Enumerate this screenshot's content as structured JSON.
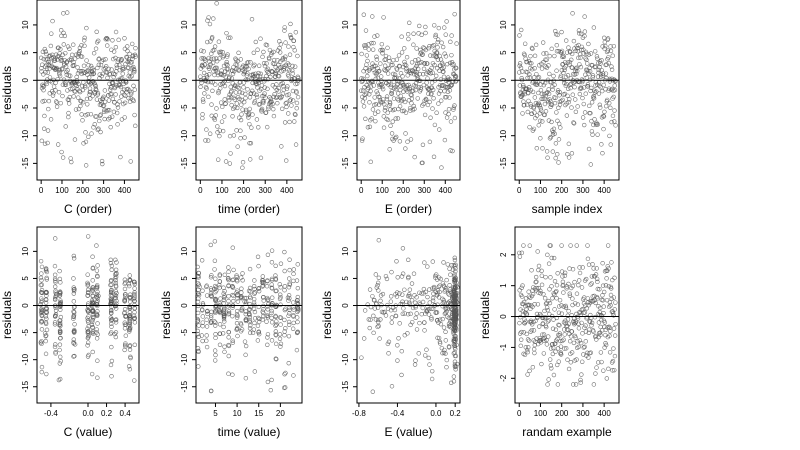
{
  "chart_data": [
    {
      "type": "scatter",
      "xlabel": "C (order)",
      "ylabel": "residuals",
      "xlim": [
        -20,
        470
      ],
      "ylim": [
        -18,
        14.5
      ],
      "xticks": [
        0,
        100,
        200,
        300,
        400
      ],
      "xtick_labels": [
        "0",
        "100",
        "200",
        "300",
        "400"
      ],
      "yticks": [
        10,
        5,
        0,
        -5,
        -10,
        -15
      ],
      "ytick_labels": [
        "10",
        "5",
        "0",
        "-5",
        "-10",
        "-15"
      ],
      "hline": 0,
      "pattern": "order"
    },
    {
      "type": "scatter",
      "xlabel": "time (order)",
      "ylabel": "residuals",
      "xlim": [
        -20,
        470
      ],
      "ylim": [
        -18,
        14.5
      ],
      "xticks": [
        0,
        100,
        200,
        300,
        400
      ],
      "xtick_labels": [
        "0",
        "100",
        "200",
        "300",
        "400"
      ],
      "yticks": [
        10,
        5,
        0,
        -5,
        -10,
        -15
      ],
      "ytick_labels": [
        "10",
        "5",
        "0",
        "-5",
        "-10",
        "-15"
      ],
      "hline": 0,
      "pattern": "order"
    },
    {
      "type": "scatter",
      "xlabel": "E (order)",
      "ylabel": "residuals",
      "xlim": [
        -20,
        470
      ],
      "ylim": [
        -18,
        14.5
      ],
      "xticks": [
        0,
        100,
        200,
        300,
        400
      ],
      "xtick_labels": [
        "0",
        "100",
        "200",
        "300",
        "400"
      ],
      "yticks": [
        10,
        5,
        0,
        -5,
        -10,
        -15
      ],
      "ytick_labels": [
        "10",
        "5",
        "0",
        "-5",
        "-10",
        "-15"
      ],
      "hline": 0,
      "pattern": "order"
    },
    {
      "type": "scatter",
      "xlabel": "sample index",
      "ylabel": "residuals",
      "xlim": [
        -20,
        470
      ],
      "ylim": [
        -18,
        14.5
      ],
      "xticks": [
        0,
        100,
        200,
        300,
        400
      ],
      "xtick_labels": [
        "0",
        "100",
        "200",
        "300",
        "400"
      ],
      "yticks": [
        10,
        5,
        0,
        -5,
        -10,
        -15
      ],
      "ytick_labels": [
        "10",
        "5",
        "0",
        "-5",
        "-10",
        "-15"
      ],
      "hline": 0,
      "pattern": "order"
    },
    {
      "type": "scatter",
      "xlabel": "C (value)",
      "ylabel": "residuals",
      "xlim": [
        -0.55,
        0.55
      ],
      "ylim": [
        -18,
        14.5
      ],
      "xticks": [
        -0.4,
        0.0,
        0.2,
        0.4
      ],
      "xtick_labels": [
        "-0.4",
        "0.0",
        "0.2",
        "0.4"
      ],
      "yticks": [
        10,
        5,
        0,
        -5,
        -10,
        -15
      ],
      "ytick_labels": [
        "10",
        "5",
        "0",
        "-5",
        "-10",
        "-15"
      ],
      "hline": 0,
      "pattern": "columns",
      "x_columns": [
        -0.5,
        -0.45,
        -0.35,
        -0.3,
        -0.15,
        0.0,
        0.05,
        0.1,
        0.25,
        0.3,
        0.4,
        0.45,
        0.5
      ]
    },
    {
      "type": "scatter",
      "xlabel": "time (value)",
      "ylabel": "residuals",
      "xlim": [
        0.5,
        25
      ],
      "ylim": [
        -18,
        14.5
      ],
      "xticks": [
        5,
        10,
        15,
        20
      ],
      "xtick_labels": [
        "5",
        "10",
        "15",
        "20"
      ],
      "yticks": [
        10,
        5,
        0,
        -5,
        -10,
        -15
      ],
      "ytick_labels": [
        "10",
        "5",
        "0",
        "-5",
        "-10",
        "-15"
      ],
      "hline": 0,
      "pattern": "columns",
      "x_columns": [
        1,
        2,
        3,
        4,
        5,
        6,
        7,
        8,
        9,
        10,
        11,
        12,
        13,
        14,
        15,
        16,
        17,
        18,
        19,
        20,
        21,
        22,
        23,
        24
      ]
    },
    {
      "type": "scatter",
      "xlabel": "E (value)",
      "ylabel": "residuals",
      "xlim": [
        -0.82,
        0.25
      ],
      "ylim": [
        -18,
        14.5
      ],
      "xticks": [
        -0.8,
        -0.4,
        0.0,
        0.2
      ],
      "xtick_labels": [
        "-0.8",
        "-0.4",
        "0.0",
        "0.2"
      ],
      "yticks": [
        10,
        5,
        0,
        -5,
        -10,
        -15
      ],
      "ytick_labels": [
        "10",
        "5",
        "0",
        "-5",
        "-10",
        "-15"
      ],
      "hline": 0,
      "pattern": "skewed"
    },
    {
      "type": "scatter",
      "xlabel": "randam example",
      "ylabel": "residuals",
      "xlim": [
        -20,
        470
      ],
      "ylim": [
        -2.8,
        2.9
      ],
      "xticks": [
        0,
        100,
        200,
        300,
        400
      ],
      "xtick_labels": [
        "0",
        "100",
        "200",
        "300",
        "400"
      ],
      "yticks": [
        2,
        1,
        0,
        -1,
        -2
      ],
      "ytick_labels": [
        "2",
        "1",
        "0",
        "-1",
        "-2"
      ],
      "hline": 0,
      "pattern": "normal"
    }
  ],
  "style": {
    "point_color": "#555555",
    "hline_color": "#000000"
  }
}
